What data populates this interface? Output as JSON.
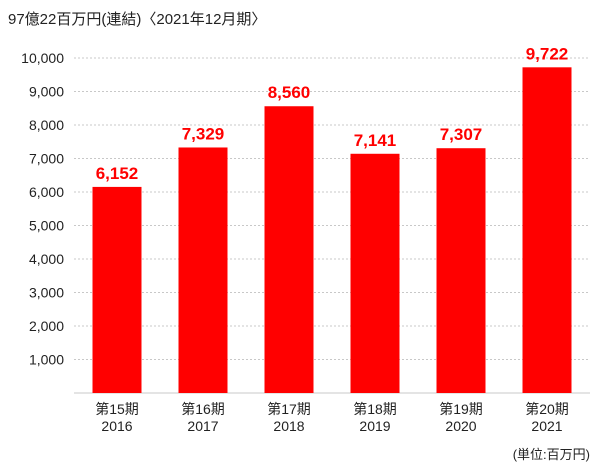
{
  "chart_data": {
    "type": "bar",
    "title": "97億22百万円(連結)〈2021年12月期〉",
    "unit_note": "(単位:百万円)",
    "categories": [
      [
        "第15期",
        "2016"
      ],
      [
        "第16期",
        "2017"
      ],
      [
        "第17期",
        "2018"
      ],
      [
        "第18期",
        "2019"
      ],
      [
        "第19期",
        "2020"
      ],
      [
        "第20期",
        "2021"
      ]
    ],
    "values": [
      6152,
      7329,
      8560,
      7141,
      7307,
      9722
    ],
    "value_labels": [
      "6,152",
      "7,329",
      "8,560",
      "7,141",
      "7,307",
      "9,722"
    ],
    "yticks": [
      1000,
      2000,
      3000,
      4000,
      5000,
      6000,
      7000,
      8000,
      9000,
      10000
    ],
    "ytick_labels": [
      "1,000",
      "2,000",
      "3,000",
      "4,000",
      "5,000",
      "6,000",
      "7,000",
      "8,000",
      "9,000",
      "10,000"
    ],
    "ylim": [
      0,
      10000
    ],
    "grid": true,
    "bar_color": "#ff0000",
    "grid_color": "#c8c8c8"
  }
}
